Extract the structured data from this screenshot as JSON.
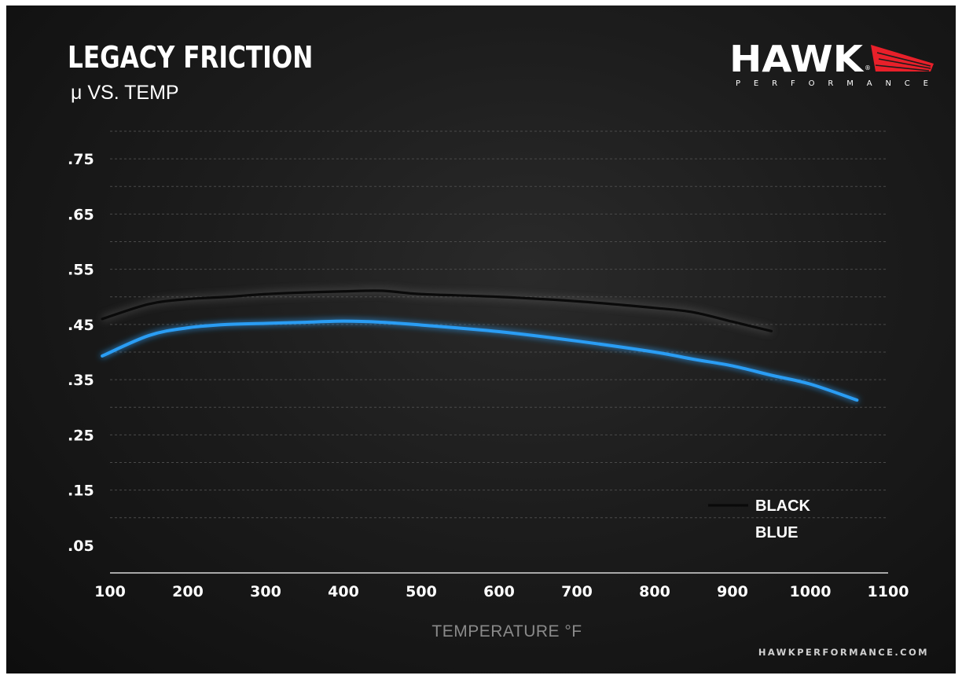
{
  "header": {
    "title": "LEGACY FRICTION",
    "subtitle": "μ VS. TEMP"
  },
  "logo": {
    "brand": "HAWK",
    "tagline": "PERFORMANCE",
    "registered": "®",
    "accent_color": "#e8202a"
  },
  "footer": {
    "website": "HAWKPERFORMANCE.COM"
  },
  "colors": {
    "background": "#1c1c1c",
    "grid": "#4a4a4a",
    "series_black": "#0a0a0a",
    "series_blue": "#2a9df4"
  },
  "chart_data": {
    "type": "line",
    "title": "LEGACY FRICTION",
    "subtitle": "μ VS. TEMP",
    "xlabel": "TEMPERATURE °F",
    "ylabel": "",
    "xlim": [
      100,
      1100
    ],
    "ylim": [
      0.0,
      0.8
    ],
    "x_ticks": [
      100,
      200,
      300,
      400,
      500,
      600,
      700,
      800,
      900,
      1000,
      1100
    ],
    "x_tick_labels": [
      "100",
      "200",
      "300",
      "400",
      "500",
      "600",
      "700",
      "800",
      "900",
      "1000",
      "1100"
    ],
    "y_ticks": [
      0.05,
      0.15,
      0.25,
      0.35,
      0.45,
      0.55,
      0.65,
      0.75
    ],
    "y_tick_labels": [
      ".05",
      ".15",
      ".25",
      ".35",
      ".45",
      ".55",
      ".65",
      ".75"
    ],
    "grid": true,
    "legend_position": "bottom-right",
    "series": [
      {
        "name": "BLACK",
        "color": "#0a0a0a",
        "x": [
          90,
          150,
          200,
          250,
          300,
          350,
          400,
          450,
          500,
          600,
          700,
          800,
          850,
          900,
          950
        ],
        "y": [
          0.46,
          0.487,
          0.496,
          0.5,
          0.505,
          0.508,
          0.51,
          0.511,
          0.505,
          0.5,
          0.492,
          0.48,
          0.472,
          0.455,
          0.438
        ]
      },
      {
        "name": "BLUE",
        "color": "#2a9df4",
        "x": [
          90,
          150,
          200,
          250,
          300,
          350,
          400,
          450,
          500,
          600,
          700,
          800,
          850,
          900,
          950,
          1000,
          1060
        ],
        "y": [
          0.393,
          0.43,
          0.444,
          0.45,
          0.452,
          0.454,
          0.456,
          0.454,
          0.449,
          0.437,
          0.42,
          0.4,
          0.387,
          0.375,
          0.358,
          0.342,
          0.313
        ]
      }
    ]
  }
}
